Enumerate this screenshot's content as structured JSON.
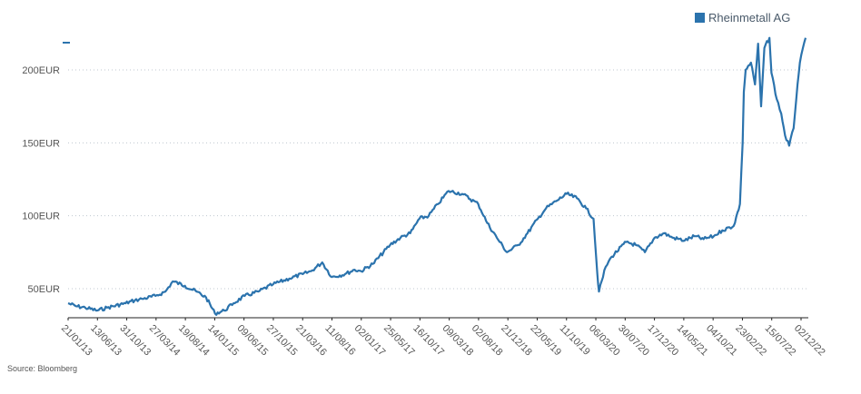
{
  "chart_data": {
    "type": "line",
    "title": "",
    "xlabel": "",
    "ylabel": "",
    "ylim": [
      30,
      225
    ],
    "grid": "horizontal-dotted",
    "legend_position": "top-right",
    "yticks": [
      {
        "value": 50,
        "label": "50EUR"
      },
      {
        "value": 100,
        "label": "100EUR"
      },
      {
        "value": 150,
        "label": "150EUR"
      },
      {
        "value": 200,
        "label": "200EUR"
      }
    ],
    "xtick_labels": [
      "21/01/13",
      "13/06/13",
      "31/10/13",
      "27/03/14",
      "19/08/14",
      "14/01/15",
      "09/06/15",
      "27/10/15",
      "21/03/16",
      "11/08/16",
      "02/01/17",
      "25/05/17",
      "16/10/17",
      "09/03/18",
      "02/08/18",
      "21/12/18",
      "22/05/19",
      "11/10/19",
      "06/03/20",
      "30/07/20",
      "17/12/20",
      "14/05/21",
      "04/10/21",
      "23/02/22",
      "15/07/22",
      "02/12/22"
    ],
    "series": [
      {
        "name": "Rheinmetall AG",
        "color": "#2b73ad",
        "x": [
          "2013-01-21",
          "2013-03-01",
          "2013-04-15",
          "2013-06-13",
          "2013-08-01",
          "2013-10-31",
          "2013-12-15",
          "2014-01-20",
          "2014-03-27",
          "2014-05-15",
          "2014-06-20",
          "2014-08-19",
          "2014-10-15",
          "2014-12-01",
          "2015-01-14",
          "2015-03-01",
          "2015-04-15",
          "2015-06-09",
          "2015-08-15",
          "2015-10-27",
          "2016-01-15",
          "2016-03-21",
          "2016-05-01",
          "2016-06-25",
          "2016-08-11",
          "2016-10-15",
          "2016-12-01",
          "2017-01-02",
          "2017-03-01",
          "2017-05-25",
          "2017-07-15",
          "2017-09-01",
          "2017-10-16",
          "2017-12-01",
          "2018-01-15",
          "2018-03-09",
          "2018-05-15",
          "2018-08-02",
          "2018-09-15",
          "2018-11-01",
          "2018-12-21",
          "2019-02-15",
          "2019-04-01",
          "2019-05-22",
          "2019-07-01",
          "2019-08-20",
          "2019-10-11",
          "2019-12-01",
          "2020-01-15",
          "2020-02-20",
          "2020-03-10",
          "2020-03-18",
          "2020-04-20",
          "2020-05-20",
          "2020-07-30",
          "2020-09-15",
          "2020-10-30",
          "2020-12-17",
          "2021-02-01",
          "2021-03-15",
          "2021-05-14",
          "2021-07-01",
          "2021-08-15",
          "2021-10-04",
          "2021-11-15",
          "2022-01-10",
          "2022-02-10",
          "2022-02-23",
          "2022-03-01",
          "2022-03-10",
          "2022-04-05",
          "2022-04-25",
          "2022-05-10",
          "2022-05-25",
          "2022-06-10",
          "2022-07-05",
          "2022-07-15",
          "2022-08-10",
          "2022-09-01",
          "2022-09-20",
          "2022-10-10",
          "2022-11-01",
          "2022-11-20",
          "2022-12-02",
          "2022-12-30"
        ],
        "values": [
          40,
          38,
          37,
          35,
          37,
          40,
          42,
          43,
          45,
          48,
          55,
          52,
          48,
          44,
          33,
          35,
          40,
          45,
          48,
          53,
          57,
          60,
          62,
          68,
          58,
          60,
          63,
          62,
          67,
          80,
          85,
          88,
          98,
          100,
          108,
          117,
          115,
          108,
          95,
          85,
          75,
          80,
          88,
          98,
          105,
          110,
          115,
          112,
          105,
          98,
          60,
          48,
          65,
          72,
          82,
          80,
          75,
          85,
          88,
          85,
          83,
          86,
          84,
          86,
          90,
          93,
          108,
          150,
          185,
          200,
          205,
          190,
          218,
          175,
          215,
          222,
          198,
          180,
          170,
          155,
          148,
          160,
          190,
          205,
          222
        ]
      }
    ]
  },
  "legend": {
    "label": "Rheinmetall AG"
  },
  "source": "Source: Bloomberg"
}
